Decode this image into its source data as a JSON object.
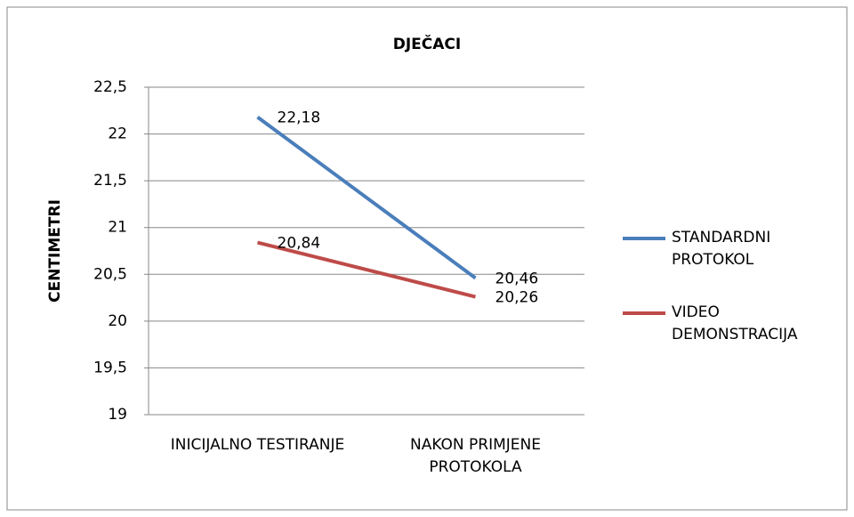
{
  "chart_data": {
    "type": "line",
    "title": "DJEČACI",
    "y_label": "CENTIMETRI",
    "categories": [
      "INICIJALNO TESTIRANJE",
      "NAKON PRIMJENE PROTOKOLA"
    ],
    "series": [
      {
        "name": "STANDARDNI PROTOKOL",
        "color": "#4a7ebb",
        "values": [
          22.18,
          20.46
        ],
        "value_labels": [
          "22,18",
          "20,46"
        ]
      },
      {
        "name": "VIDEO DEMONSTRACIJA",
        "color": "#be4b48",
        "values": [
          20.84,
          20.26
        ],
        "value_labels": [
          "20,84",
          "20,26"
        ]
      }
    ],
    "ylim": [
      19,
      22.5
    ],
    "yticks": [
      19,
      {
        "value": 19.5,
        "label": "19,5"
      },
      20,
      {
        "value": 20.5,
        "label": "20,5"
      },
      21,
      {
        "value": 21.5,
        "label": "21,5"
      },
      22,
      {
        "value": 22.5,
        "label": "22,5"
      }
    ],
    "grid": true,
    "legend": "right"
  }
}
